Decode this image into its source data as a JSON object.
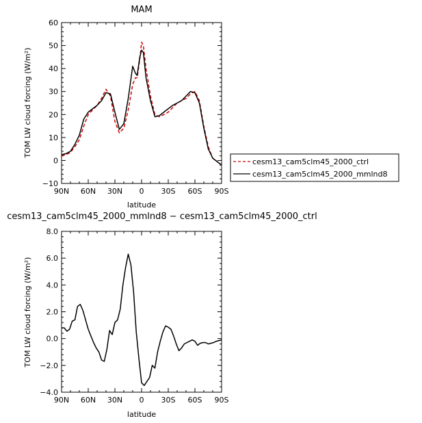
{
  "chart_data": [
    {
      "type": "line",
      "title": "MAM",
      "xlabel": "latitude",
      "ylabel": "TOM LW cloud forcing (W/m²)",
      "xlim": [
        90,
        -90
      ],
      "ylim": [
        -10,
        60
      ],
      "xticks": [
        90,
        60,
        30,
        0,
        -30,
        -60,
        -90
      ],
      "xtick_labels": [
        "90N",
        "60N",
        "30N",
        "0",
        "30S",
        "60S",
        "90S"
      ],
      "yticks": [
        -10,
        0,
        10,
        20,
        30,
        40,
        50,
        60
      ],
      "ytick_labels": [
        "−10",
        "0",
        "10",
        "20",
        "30",
        "40",
        "50",
        "60"
      ],
      "legend": "right",
      "series": [
        {
          "name": "cesm13_cam5clm45_2000_ctrl",
          "color": "#cc0000",
          "dash": "dashed",
          "x": [
            90,
            85,
            80,
            75,
            70,
            65,
            60,
            55,
            50,
            45,
            40,
            35,
            30,
            25,
            20,
            15,
            10,
            7,
            5,
            2,
            0,
            -2,
            -5,
            -10,
            -15,
            -20,
            -25,
            -30,
            -35,
            -40,
            -45,
            -50,
            -55,
            -60,
            -65,
            -70,
            -75,
            -80,
            -85,
            -90
          ],
          "y": [
            2,
            2.5,
            3.5,
            6,
            9,
            15,
            20,
            22,
            24,
            27,
            31,
            28,
            17,
            12,
            14,
            22,
            33,
            36,
            36,
            44,
            51.5,
            50,
            40,
            28,
            20,
            19,
            20,
            21,
            23,
            25,
            26,
            27,
            29,
            30,
            26,
            15,
            6,
            1,
            -0.5,
            -2
          ]
        },
        {
          "name": "cesm13_cam5clm45_2000_mmlnd8",
          "color": "#000000",
          "dash": "solid",
          "x": [
            90,
            85,
            80,
            75,
            70,
            65,
            60,
            55,
            50,
            45,
            40,
            35,
            30,
            25,
            20,
            15,
            10,
            7,
            5,
            2,
            0,
            -2,
            -5,
            -10,
            -15,
            -20,
            -25,
            -30,
            -35,
            -40,
            -45,
            -50,
            -55,
            -60,
            -65,
            -70,
            -75,
            -80,
            -85,
            -90
          ],
          "y": [
            2.5,
            3,
            4,
            7,
            11,
            18,
            21,
            22.5,
            24,
            26,
            29.5,
            29,
            21,
            13.5,
            16,
            27,
            41,
            38,
            37,
            45,
            48,
            47,
            36,
            26,
            19,
            19.5,
            21,
            22.5,
            24,
            25,
            26,
            28,
            30,
            29.5,
            25,
            14,
            5,
            1,
            -0.5,
            -2
          ]
        }
      ]
    },
    {
      "type": "line",
      "title": "cesm13_cam5clm45_2000_mmlnd8 − cesm13_cam5clm45_2000_ctrl",
      "xlabel": "latitude",
      "ylabel": "TOM LW cloud forcing (W/m²)",
      "xlim": [
        90,
        -90
      ],
      "ylim": [
        -4,
        8
      ],
      "xticks": [
        90,
        60,
        30,
        0,
        -30,
        -60,
        -90
      ],
      "xtick_labels": [
        "90N",
        "60N",
        "30N",
        "0",
        "30S",
        "60S",
        "90S"
      ],
      "yticks": [
        -4,
        -2,
        0,
        2,
        4,
        6,
        8
      ],
      "ytick_labels": [
        "−4.0",
        "−2.0",
        "0.0",
        "2.0",
        "4.0",
        "6.0",
        "8.0"
      ],
      "series": [
        {
          "name": "",
          "color": "#000000",
          "dash": "solid",
          "x": [
            90,
            87,
            84,
            81,
            78,
            75,
            72,
            69,
            66,
            63,
            60,
            57,
            54,
            51,
            48,
            45,
            42,
            39,
            36,
            33,
            30,
            27,
            24,
            21,
            18,
            15,
            12,
            9,
            6,
            3,
            0,
            -3,
            -6,
            -9,
            -12,
            -15,
            -18,
            -21,
            -24,
            -27,
            -30,
            -33,
            -36,
            -39,
            -42,
            -45,
            -48,
            -51,
            -54,
            -57,
            -60,
            -63,
            -66,
            -69,
            -72,
            -75,
            -78,
            -81,
            -84,
            -87,
            -90
          ],
          "y": [
            0.8,
            0.8,
            0.55,
            0.7,
            1.3,
            1.4,
            2.4,
            2.55,
            2.1,
            1.4,
            0.7,
            0.2,
            -0.3,
            -0.7,
            -1.0,
            -1.6,
            -1.7,
            -0.8,
            0.6,
            0.3,
            1.2,
            1.4,
            2.2,
            4.0,
            5.3,
            6.3,
            5.5,
            3.5,
            0.5,
            -1.5,
            -3.3,
            -3.5,
            -3.2,
            -2.9,
            -2.0,
            -2.2,
            -1.0,
            -0.2,
            0.5,
            0.95,
            0.85,
            0.7,
            0.2,
            -0.4,
            -0.9,
            -0.7,
            -0.4,
            -0.3,
            -0.2,
            -0.1,
            -0.2,
            -0.5,
            -0.35,
            -0.3,
            -0.3,
            -0.4,
            -0.35,
            -0.3,
            -0.2,
            -0.15,
            -0.1
          ]
        }
      ]
    }
  ]
}
